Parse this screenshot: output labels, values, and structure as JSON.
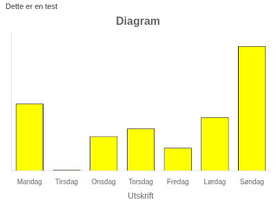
{
  "chart_data": {
    "type": "bar",
    "title": "Diagram",
    "categories": [
      "Mandag",
      "Tirsdag",
      "Onsdag",
      "Torsdag",
      "Fredag",
      "Lørdag",
      "Søndag"
    ],
    "values": [
      3.5,
      0.05,
      1.8,
      2.2,
      1.2,
      2.8,
      6.5
    ],
    "color": "#FFFF00",
    "ylim": [
      0,
      7.2
    ],
    "grid": false,
    "tick_labels": "x",
    "xlabel": "Utskrift",
    "annotations": [
      "Dette er en test"
    ]
  }
}
